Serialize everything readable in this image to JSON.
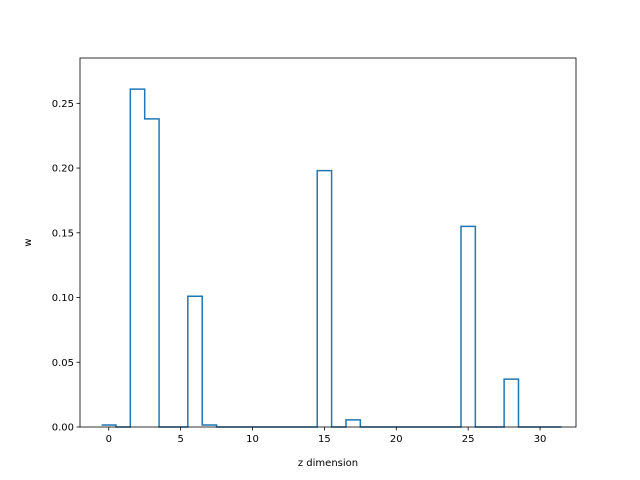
{
  "chart_data": {
    "type": "step",
    "xlabel": "z dimension",
    "ylabel": "w",
    "xlim": [
      -2.0,
      32.5
    ],
    "ylim": [
      0.0,
      0.285
    ],
    "x_ticks": [
      0,
      5,
      10,
      15,
      20,
      25,
      30
    ],
    "y_ticks": [
      0.0,
      0.05,
      0.1,
      0.15,
      0.2,
      0.25
    ],
    "x_tick_labels": [
      "0",
      "5",
      "10",
      "15",
      "20",
      "25",
      "30"
    ],
    "y_tick_labels": [
      "0.00",
      "0.05",
      "0.10",
      "0.15",
      "0.20",
      "0.25"
    ],
    "grid": false,
    "color": "#1f77b4",
    "series": [
      {
        "x": [
          0,
          1,
          2,
          3,
          4,
          5,
          6,
          7,
          8,
          9,
          10,
          11,
          12,
          13,
          14,
          15,
          16,
          17,
          18,
          19,
          20,
          21,
          22,
          23,
          24,
          25,
          26,
          27,
          28,
          29,
          30,
          31
        ],
        "values": [
          0.0015,
          0.0,
          0.261,
          0.238,
          0.0,
          0.0,
          0.101,
          0.0015,
          0.0,
          0.0,
          0.0,
          0.0,
          0.0,
          0.0,
          0.0,
          0.198,
          0.0,
          0.0055,
          0.0,
          0.0,
          0.0,
          0.0,
          0.0,
          0.0,
          0.0,
          0.155,
          0.0,
          0.0,
          0.037,
          0.0,
          0.0,
          0.0
        ]
      }
    ]
  }
}
